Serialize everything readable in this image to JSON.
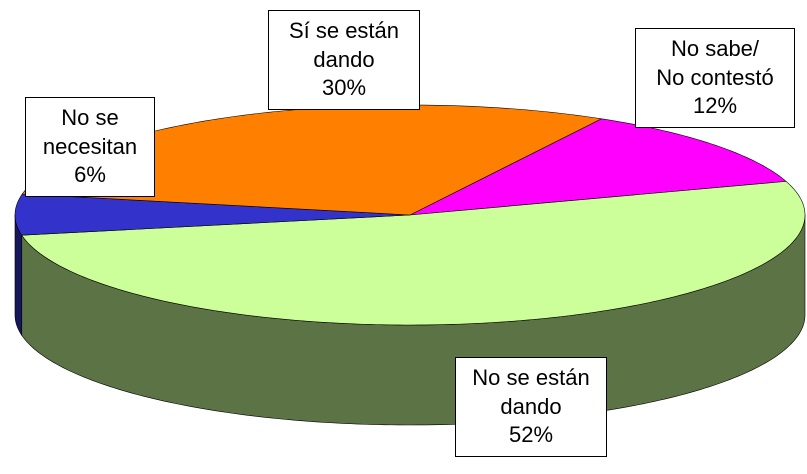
{
  "chart_data": {
    "type": "pie3d",
    "categories": [
      "No sabe/\nNo contestó",
      "No se están\ndando",
      "No se\nnecesitan",
      "Sí se están\ndando"
    ],
    "values": [
      12,
      52,
      6,
      30
    ],
    "value_labels": [
      "12%",
      "52%",
      "6%",
      "30%"
    ],
    "colors": [
      "#ff00ff",
      "#ccff99",
      "#3333cc",
      "#ff8000"
    ]
  }
}
